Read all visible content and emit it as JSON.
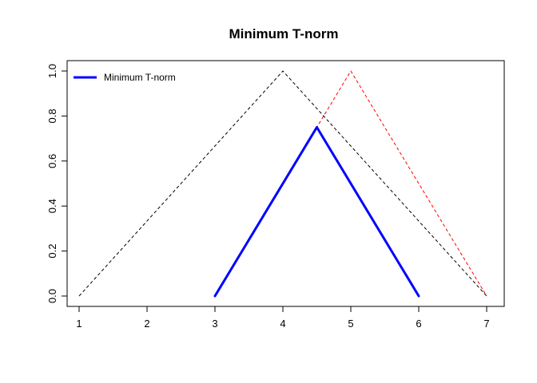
{
  "chart_data": {
    "type": "line",
    "title": "Minimum T-norm",
    "xlabel": "",
    "ylabel": "",
    "xlim": [
      1,
      7
    ],
    "ylim": [
      0,
      1
    ],
    "x_ticks": [
      1,
      2,
      3,
      4,
      5,
      6,
      7
    ],
    "y_ticks": [
      0.0,
      0.2,
      0.4,
      0.6,
      0.8,
      1.0
    ],
    "y_tick_labels": [
      "0.0",
      "0.2",
      "0.4",
      "0.6",
      "0.8",
      "1.0"
    ],
    "grid": false,
    "legend": {
      "position": "top-left",
      "entries": [
        "Minimum T-norm"
      ]
    },
    "series": [
      {
        "key": "triangle-a",
        "color": "#000000",
        "style": "dashed",
        "x": [
          1,
          4,
          7
        ],
        "y": [
          0,
          1,
          0
        ]
      },
      {
        "key": "triangle-b",
        "color": "#ff0000",
        "style": "dashed",
        "x": [
          3,
          5,
          7
        ],
        "y": [
          0,
          1,
          0
        ]
      },
      {
        "key": "min-tnorm",
        "name": "Minimum T-norm",
        "color": "#0000ff",
        "style": "solid",
        "x": [
          3,
          4.5,
          6
        ],
        "y": [
          0,
          0.75,
          0
        ]
      }
    ]
  }
}
